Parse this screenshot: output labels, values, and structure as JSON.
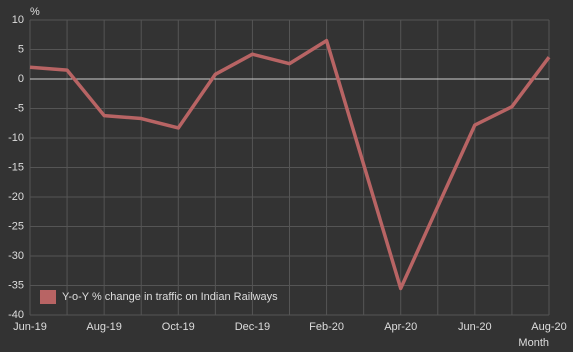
{
  "chart_data": {
    "type": "line",
    "y_label": "%",
    "x_label": "Month",
    "categories": [
      "Jun-19",
      null,
      "Aug-19",
      null,
      "Oct-19",
      null,
      "Dec-19",
      null,
      "Feb-20",
      null,
      "Apr-20",
      null,
      "Jun-20",
      null,
      "Aug-20"
    ],
    "series": [
      {
        "name": "Y-o-Y % change in traffic on Indian Railways",
        "color": "#b86464",
        "values": [
          2,
          1.5,
          -6.2,
          -6.7,
          -8.3,
          0.8,
          4.2,
          2.6,
          6.5,
          -14.5,
          -35.5,
          -21.6,
          -7.8,
          -4.7,
          3.7
        ]
      }
    ],
    "ylim": [
      -40,
      10
    ],
    "yticks": [
      -40,
      -35,
      -30,
      -25,
      -20,
      -15,
      -10,
      -5,
      0,
      5,
      10
    ],
    "grid": true,
    "legend": "lower left"
  }
}
